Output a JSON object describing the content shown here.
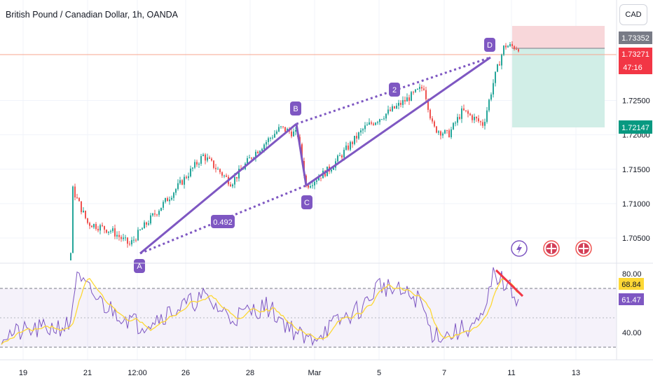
{
  "header": {
    "symbol_title": "British Pound / Canadian Dollar, 1h, OANDA",
    "currency_button": "CAD"
  },
  "colors": {
    "up_candle": "#26a69a",
    "down_candle": "#ef5350",
    "pattern_purple": "#7e57c2",
    "rsi_line": "#7e57c2",
    "rsi_ma_line": "#fdd835",
    "divergence_line": "#f23645",
    "last_price_bg": "#f23645",
    "stop_zone": "#f8d7da",
    "target_zone": "#d1eee7"
  },
  "icons": [
    "lightning-icon",
    "uk-flag-icon",
    "uk-flag-icon"
  ],
  "chart_data": [
    {
      "type": "candlestick",
      "title": "British Pound / Canadian Dollar, 1h, OANDA",
      "price_axis": {
        "ticks": [
          "1.70500",
          "1.71000",
          "1.71500",
          "1.72000",
          "1.72500"
        ],
        "ylim": [
          1.7025,
          1.7365
        ]
      },
      "time_axis": {
        "ticks": [
          "19",
          "21",
          "12:00",
          "26",
          "28",
          "Mar",
          "5",
          "7",
          "11",
          "13"
        ]
      },
      "price_labels": [
        {
          "value": "1.73352",
          "kind": "stop"
        },
        {
          "value": "1.73271",
          "kind": "last",
          "countdown": "47:16"
        },
        {
          "value": "1.72147",
          "kind": "target"
        }
      ],
      "last_price": 1.73271,
      "pattern_points": [
        {
          "label": "A",
          "price": 1.7022
        },
        {
          "label": "B",
          "price": 1.7221
        },
        {
          "label": "C",
          "price": 1.7126
        },
        {
          "label": "2",
          "price": 1.728
        },
        {
          "label": "D",
          "price": 1.7323
        }
      ],
      "pattern_ratio_label": "0.492",
      "position_tool": {
        "entry": 1.73271,
        "stop": 1.73352,
        "target": 1.72147
      },
      "grid": true
    },
    {
      "type": "line",
      "panel": "RSI",
      "ylim": [
        32,
        86
      ],
      "ticks": [
        "80.00",
        "40.00"
      ],
      "bands": [
        70,
        30
      ],
      "series": [
        {
          "role": "rsi",
          "last_value": "61.47"
        },
        {
          "role": "rsi-ma",
          "last_value": "68.84"
        }
      ]
    }
  ]
}
